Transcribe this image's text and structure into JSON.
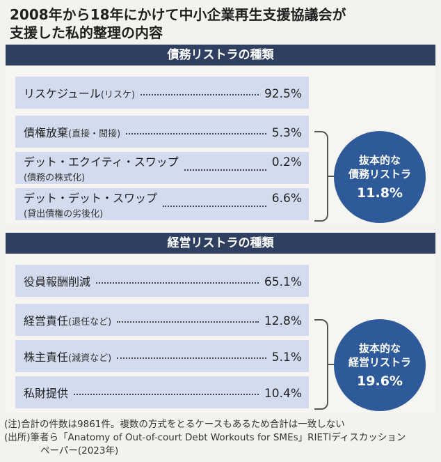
{
  "title": {
    "line1": "2008年から18年にかけて中小企業再生支援協議会が",
    "line2": "支援した私的整理の内容"
  },
  "debt_section": {
    "header": "債務リストラの種類",
    "rows": [
      {
        "label": "リスケジュール",
        "sub": "(リスケ)",
        "value": "92.5%"
      },
      {
        "label": "債権放棄",
        "sub": "(直接・間接)",
        "value": "5.3%"
      },
      {
        "label": "デット・エクイティ・スワップ",
        "sub": "(債務の株式化)",
        "value": "0.2%"
      },
      {
        "label": "デット・デット・スワップ",
        "sub": "(貸出債権の劣後化)",
        "value": "6.6%"
      }
    ],
    "circle": {
      "line1": "抜本的な",
      "line2": "債務リストラ",
      "value": "11.8%"
    }
  },
  "mgmt_section": {
    "header": "経営リストラの種類",
    "rows": [
      {
        "label": "役員報酬削減",
        "sub": "",
        "value": "65.1%"
      },
      {
        "label": "経営責任",
        "sub": "(退任など)",
        "value": "12.8%"
      },
      {
        "label": "株主責任",
        "sub": "(減資など)",
        "value": "5.1%"
      },
      {
        "label": "私財提供",
        "sub": "",
        "value": "10.4%"
      }
    ],
    "circle": {
      "line1": "抜本的な",
      "line2": "経営リストラ",
      "value": "19.6%"
    }
  },
  "notes": {
    "note1": "(注)合計の件数は9861件。複数の方式をとるケースもあるため合計は一致しない",
    "source1": "(出所)筆者ら「Anatomy of Out-of-court Debt Workouts for SMEs」RIETIディスカッション",
    "source2": "ペーパー(2023年)"
  },
  "colors": {
    "header_bg": "#2f3f60",
    "row_bg": "#d3dcef",
    "circle_bg": "#2f5a9a"
  }
}
